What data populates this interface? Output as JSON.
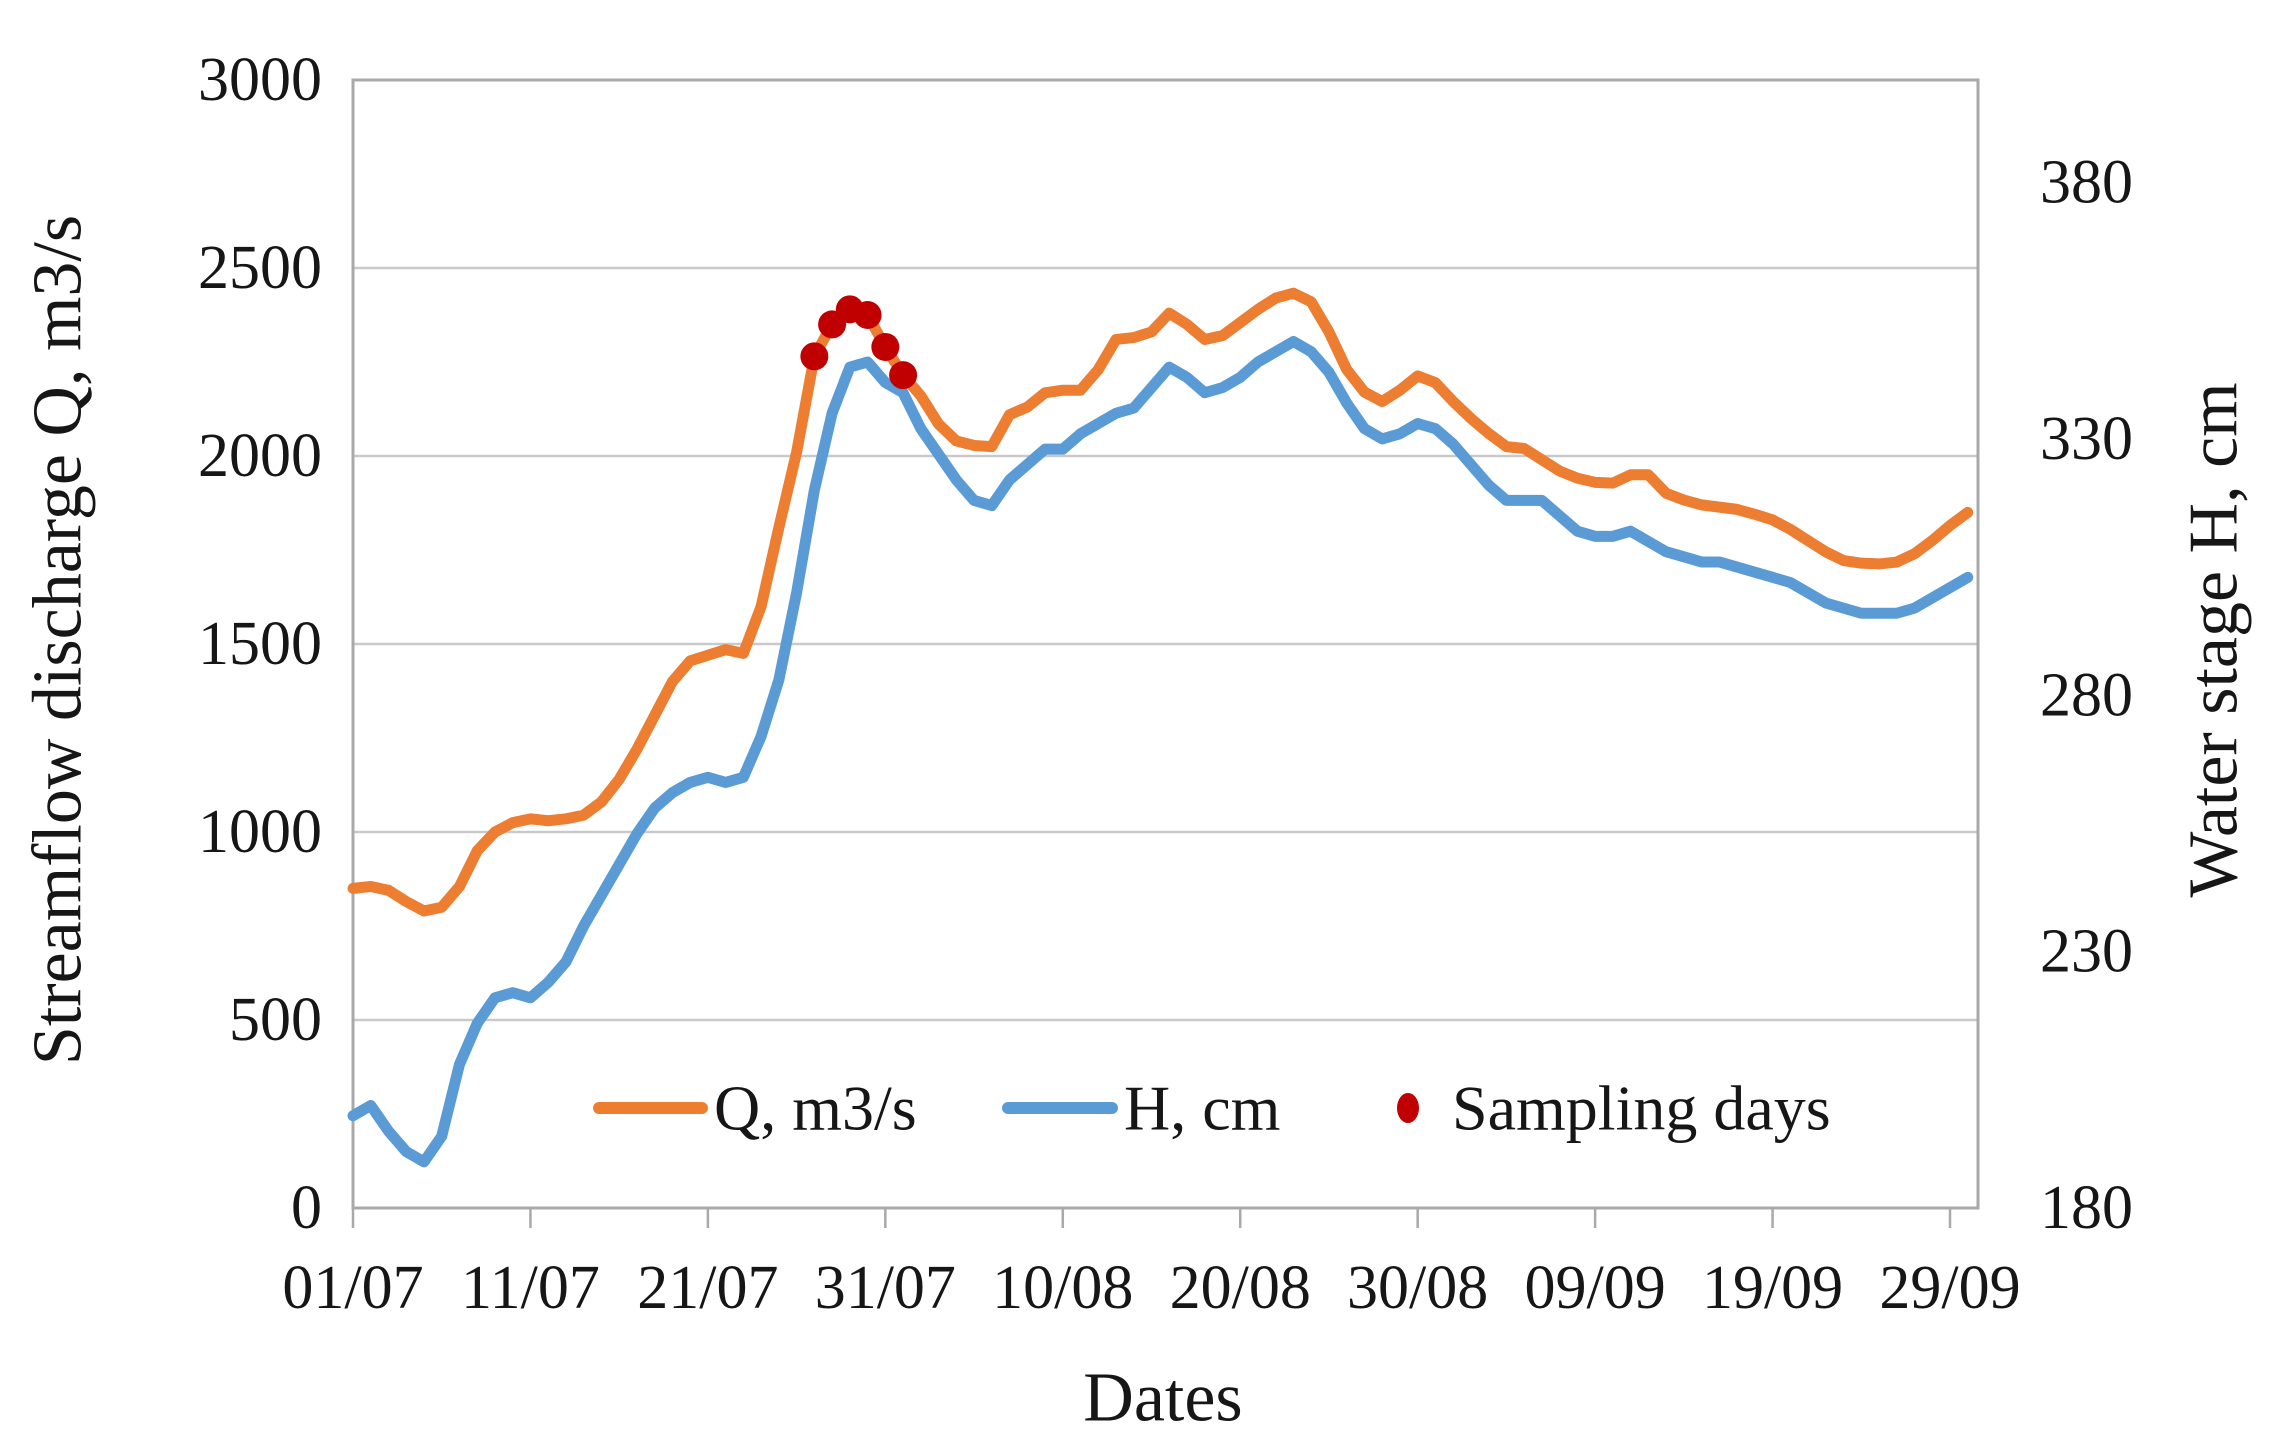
{
  "figure": {
    "background": "#ffffff"
  },
  "chart_data": {
    "type": "line",
    "title": "",
    "grid": {
      "horizontal": true,
      "color": "#c9c9c9",
      "border_color": "#a9a9a9"
    },
    "x": {
      "title": "Dates",
      "tick_labels": [
        "01/07",
        "11/07",
        "21/07",
        "31/07",
        "10/08",
        "20/08",
        "30/08",
        "09/09",
        "19/09",
        "29/09"
      ],
      "dates": [
        "01/07",
        "02/07",
        "03/07",
        "04/07",
        "05/07",
        "06/07",
        "07/07",
        "08/07",
        "09/07",
        "10/07",
        "11/07",
        "12/07",
        "13/07",
        "14/07",
        "15/07",
        "16/07",
        "17/07",
        "18/07",
        "19/07",
        "20/07",
        "21/07",
        "22/07",
        "23/07",
        "24/07",
        "25/07",
        "26/07",
        "27/07",
        "28/07",
        "29/07",
        "30/07",
        "31/07",
        "01/08",
        "02/08",
        "03/08",
        "04/08",
        "05/08",
        "06/08",
        "07/08",
        "08/08",
        "09/08",
        "10/08",
        "11/08",
        "12/08",
        "13/08",
        "14/08",
        "15/08",
        "16/08",
        "17/08",
        "18/08",
        "19/08",
        "20/08",
        "21/08",
        "22/08",
        "23/08",
        "24/08",
        "25/08",
        "26/08",
        "27/08",
        "28/08",
        "29/08",
        "30/08",
        "31/08",
        "01/09",
        "02/09",
        "03/09",
        "04/09",
        "05/09",
        "06/09",
        "07/09",
        "08/09",
        "09/09",
        "10/09",
        "11/09",
        "12/09",
        "13/09",
        "14/09",
        "15/09",
        "16/09",
        "17/09",
        "18/09",
        "19/09",
        "20/09",
        "21/09",
        "22/09",
        "23/09",
        "24/09",
        "25/09",
        "26/09",
        "27/09",
        "28/09",
        "29/09",
        "30/09"
      ]
    },
    "axes": {
      "left": {
        "title": "Streamflow discharge Q, m3/s",
        "min": 0,
        "max": 3000,
        "step": 500,
        "tick_labels": [
          "0",
          "500",
          "1000",
          "1500",
          "2000",
          "2500",
          "3000"
        ]
      },
      "right": {
        "title": "Water stage H, cm",
        "min": 180,
        "max": 400,
        "step": 50,
        "tick_labels": [
          "180",
          "230",
          "280",
          "330",
          "380"
        ]
      }
    },
    "series": [
      {
        "name": "Q, m3/s",
        "axis": "left",
        "color": "#ED7D31",
        "values": [
          850,
          855,
          845,
          815,
          790,
          800,
          855,
          950,
          1000,
          1025,
          1035,
          1030,
          1035,
          1045,
          1080,
          1140,
          1220,
          1310,
          1400,
          1455,
          1470,
          1485,
          1475,
          1600,
          1810,
          2010,
          2265,
          2350,
          2390,
          2375,
          2290,
          2215,
          2160,
          2085,
          2040,
          2028,
          2025,
          2110,
          2130,
          2168,
          2175,
          2175,
          2230,
          2310,
          2315,
          2330,
          2380,
          2350,
          2310,
          2320,
          2355,
          2390,
          2420,
          2433,
          2410,
          2330,
          2230,
          2170,
          2145,
          2175,
          2213,
          2195,
          2145,
          2100,
          2060,
          2025,
          2020,
          1990,
          1960,
          1941,
          1930,
          1928,
          1950,
          1950,
          1901,
          1883,
          1870,
          1864,
          1858,
          1845,
          1830,
          1805,
          1775,
          1745,
          1722,
          1715,
          1713,
          1718,
          1740,
          1775,
          1815,
          1850
        ]
      },
      {
        "name": "H, cm",
        "axis": "right",
        "color": "#5B9BD5",
        "values": [
          198,
          200,
          195,
          191,
          189,
          194,
          208,
          216,
          221,
          222,
          221,
          224,
          228,
          235,
          241,
          247,
          253,
          258,
          261,
          263,
          264,
          263,
          264,
          272,
          283,
          300,
          320,
          335,
          344,
          345,
          341,
          339,
          332,
          327,
          322,
          318,
          317,
          322,
          325,
          328,
          328,
          331,
          333,
          335,
          336,
          340,
          344,
          342,
          339,
          340,
          342,
          345,
          347,
          349,
          347,
          343,
          337,
          332,
          330,
          331,
          333,
          332,
          329,
          325,
          321,
          318,
          318,
          318,
          315,
          312,
          311,
          311,
          312,
          310,
          308,
          307,
          306,
          306,
          305,
          304,
          303,
          302,
          300,
          298,
          297,
          296,
          296,
          296,
          297,
          299,
          301,
          303
        ]
      }
    ],
    "sampling": {
      "name": "Sampling days",
      "color": "#C00000",
      "dates": [
        "27/07",
        "28/07",
        "29/07",
        "30/07",
        "31/07",
        "01/08"
      ],
      "q_values": [
        2265,
        2350,
        2390,
        2375,
        2290,
        2215
      ]
    },
    "legend": {
      "position": "bottom-inside",
      "items": [
        {
          "label": "Q, m3/s",
          "marker": "line",
          "color": "#ED7D31"
        },
        {
          "label": "H, cm",
          "marker": "line",
          "color": "#5B9BD5"
        },
        {
          "label": "Sampling days",
          "marker": "dot",
          "color": "#C00000"
        }
      ]
    }
  }
}
